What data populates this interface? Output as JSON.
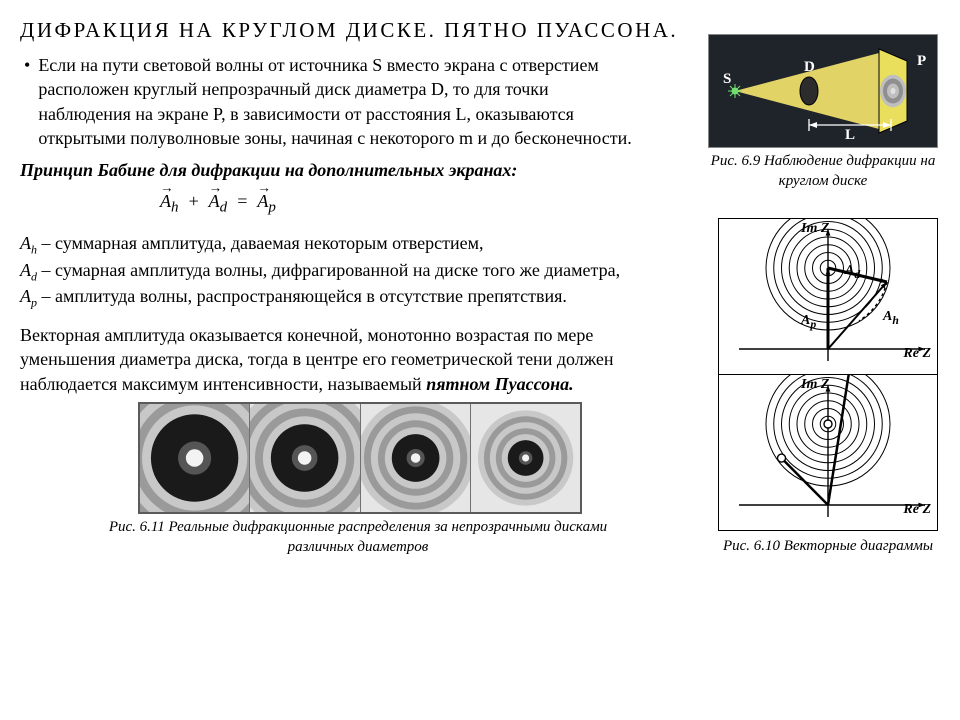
{
  "title": "ДИФРАКЦИЯ  НА  КРУГЛОМ  ДИСКЕ.  ПЯТНО  ПУАССОНА.",
  "para1": "Если на пути световой волны от источника S вместо экрана с отверстием расположен круглый непрозрачный диск диаметра D, то для точки наблюдения на экране P, в зависимости от расстояния L, оказываются открытыми полуволновые зоны, начиная с некоторого m и до бесконечности.",
  "subhead": "Принцип Бабине для дифракции на дополнительных экранах:",
  "equation": {
    "Ah": "A",
    "Ah_sub": "h",
    "Ad": "A",
    "Ad_sub": "d",
    "Ap": "A",
    "Ap_sub": "p",
    "plus": "+",
    "eq": "="
  },
  "defs": {
    "line1_pre": "A",
    "line1_sub": "h",
    "line1_rest": " – суммарная амплитуда, даваемая некоторым отверстием,",
    "line2_pre": "A",
    "line2_sub": "d",
    "line2_rest": " – сумарная амплитуда волны, дифрагированной на диске того же диаметра,",
    "line3_pre": "A",
    "line3_sub": "p",
    "line3_rest": " – амплитуда волны, распространяющейся в отсутствие препятствия."
  },
  "para2_a": "Векторная амплитуда оказывается конечной, монотонно возрастая по мере уменьшения диаметра диска, тогда в центре его геометрической тени должен наблюдается максимум интенсивности, называемый ",
  "para2_b": "пятном Пуассона.",
  "fig69": {
    "caption": "Рис. 6.9 Наблюдение дифракции на круглом диске",
    "labels": {
      "S": "S",
      "D": "D",
      "P": "P",
      "L": "L"
    },
    "colors": {
      "bg": "#1f232a",
      "beam": "#f3e36b",
      "screen": "#e9df5c",
      "disk": "#3e3e3e",
      "spot": "#bfbfbf",
      "source": "#6fe06f"
    }
  },
  "fig610": {
    "caption": "Рис. 6.10 Векторные диаграммы",
    "labels": {
      "ImZ": "Im Z",
      "ReZ": "Re Z",
      "Ad": "Ad",
      "Ah": "Aₕ",
      "Ap": "Aₚ"
    },
    "rings": 8,
    "ring_color": "#000000",
    "axis_color": "#000000"
  },
  "fig611": {
    "caption": "Рис. 6.11 Реальные дифракционные распределения за непрозрачными дисками различных диаметров",
    "cells": [
      {
        "dark_r": 44,
        "ring_step": 9,
        "rings": 5
      },
      {
        "dark_r": 34,
        "ring_step": 8,
        "rings": 5
      },
      {
        "dark_r": 24,
        "ring_step": 7,
        "rings": 5
      },
      {
        "dark_r": 18,
        "ring_step": 6,
        "rings": 5
      }
    ],
    "colors": {
      "bg": "#e6e6e6",
      "dark": "#1a1a1a",
      "light": "#c8c8c8",
      "spot": "#f3f3f3"
    }
  }
}
